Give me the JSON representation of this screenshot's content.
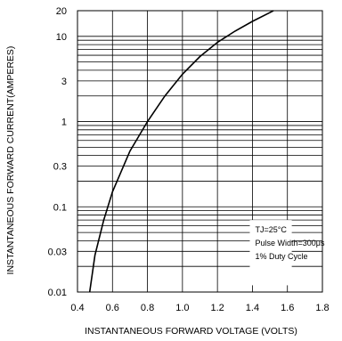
{
  "chart_data": {
    "type": "line",
    "title": "",
    "xlabel": "INSTANTANEOUS FORWARD VOLTAGE (VOLTS)",
    "ylabel": "INSTANTANEOUS FORWARD CURRENT(AMPERES)",
    "xscale": "linear",
    "yscale": "log",
    "xlim": [
      0.4,
      1.8
    ],
    "ylim": [
      0.01,
      20
    ],
    "x_ticks": [
      "0.4",
      "0.6",
      "0.8",
      "1.0",
      "1.2",
      "1.4",
      "1.6",
      "1.8"
    ],
    "y_ticks": [
      "0.01",
      "0.03",
      "0.1",
      "0.3",
      "1",
      "3",
      "10",
      "20"
    ],
    "grid": true,
    "series": [
      {
        "x": [
          0.47,
          0.5,
          0.55,
          0.6,
          0.7,
          0.8,
          0.9,
          1.0,
          1.1,
          1.2,
          1.3,
          1.4,
          1.5,
          1.52
        ],
        "y": [
          0.01,
          0.027,
          0.07,
          0.15,
          0.45,
          1.0,
          2.0,
          3.6,
          5.8,
          8.5,
          11.5,
          15.0,
          19.0,
          20.0
        ]
      }
    ],
    "annotation": {
      "position": "bottom-right",
      "lines": [
        "TJ=25°C",
        "Pulse Width=300μs",
        "1% Duty Cycle"
      ]
    }
  }
}
